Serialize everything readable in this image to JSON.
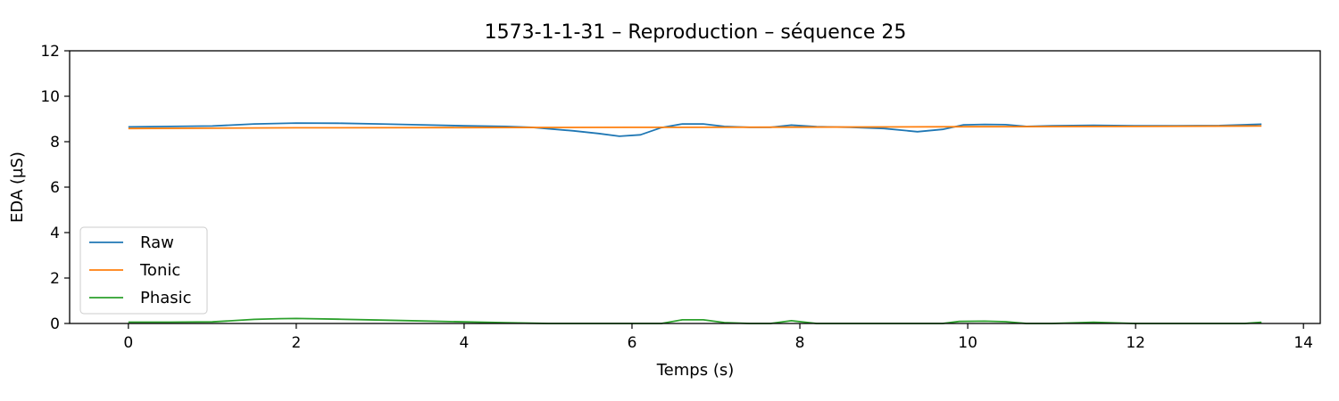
{
  "chart_data": {
    "type": "line",
    "title": "1573-1-1-31 – Reproduction – séquence 25",
    "xlabel": "Temps (s)",
    "ylabel": "EDA (µS)",
    "xlim": [
      -0.7,
      14.2
    ],
    "ylim": [
      0,
      12
    ],
    "xticks": [
      0,
      2,
      4,
      6,
      8,
      10,
      12,
      14
    ],
    "yticks": [
      0,
      2,
      4,
      6,
      8,
      10,
      12
    ],
    "xtick_labels": [
      "0",
      "2",
      "4",
      "6",
      "8",
      "10",
      "12",
      "14"
    ],
    "ytick_labels": [
      "0",
      "2",
      "4",
      "6",
      "8",
      "10",
      "12"
    ],
    "grid": false,
    "legend_position": "lower-left",
    "series": [
      {
        "name": "Raw",
        "color": "#1f77b4",
        "x": [
          0,
          0.5,
          1.0,
          1.5,
          2.0,
          2.5,
          3.0,
          3.5,
          4.0,
          4.5,
          4.8,
          5.3,
          5.6,
          5.85,
          6.1,
          6.35,
          6.6,
          6.85,
          7.1,
          7.4,
          7.65,
          7.9,
          8.2,
          8.6,
          9.0,
          9.4,
          9.7,
          9.95,
          10.2,
          10.45,
          10.7,
          11.0,
          11.5,
          12.0,
          12.5,
          13.0,
          13.5
        ],
        "y": [
          8.65,
          8.67,
          8.69,
          8.78,
          8.82,
          8.81,
          8.78,
          8.74,
          8.7,
          8.67,
          8.63,
          8.48,
          8.36,
          8.24,
          8.3,
          8.62,
          8.78,
          8.78,
          8.67,
          8.63,
          8.63,
          8.73,
          8.66,
          8.63,
          8.58,
          8.44,
          8.54,
          8.74,
          8.76,
          8.75,
          8.67,
          8.7,
          8.72,
          8.7,
          8.7,
          8.71,
          8.77
        ]
      },
      {
        "name": "Tonic",
        "color": "#ff7f0e",
        "x": [
          0,
          2,
          4,
          6,
          8,
          10,
          12,
          13.5
        ],
        "y": [
          8.58,
          8.61,
          8.62,
          8.63,
          8.64,
          8.66,
          8.67,
          8.69
        ]
      },
      {
        "name": "Phasic",
        "color": "#2ca02c",
        "x": [
          0,
          0.5,
          1.0,
          1.5,
          1.8,
          2.0,
          2.5,
          3.0,
          3.5,
          4.0,
          4.5,
          4.8,
          5.0,
          6.0,
          6.35,
          6.6,
          6.85,
          7.1,
          7.4,
          7.65,
          7.9,
          8.2,
          9.0,
          9.7,
          9.9,
          10.2,
          10.45,
          10.7,
          11.0,
          11.5,
          12.0,
          13.0,
          13.3,
          13.5
        ],
        "y": [
          0.06,
          0.06,
          0.07,
          0.18,
          0.21,
          0.22,
          0.19,
          0.15,
          0.11,
          0.07,
          0.03,
          0.01,
          0.0,
          0.0,
          0.0,
          0.16,
          0.16,
          0.04,
          0.0,
          0.0,
          0.12,
          0.0,
          0.0,
          0.0,
          0.09,
          0.1,
          0.08,
          0.0,
          0.0,
          0.05,
          0.0,
          0.0,
          0.0,
          0.05
        ]
      }
    ]
  }
}
